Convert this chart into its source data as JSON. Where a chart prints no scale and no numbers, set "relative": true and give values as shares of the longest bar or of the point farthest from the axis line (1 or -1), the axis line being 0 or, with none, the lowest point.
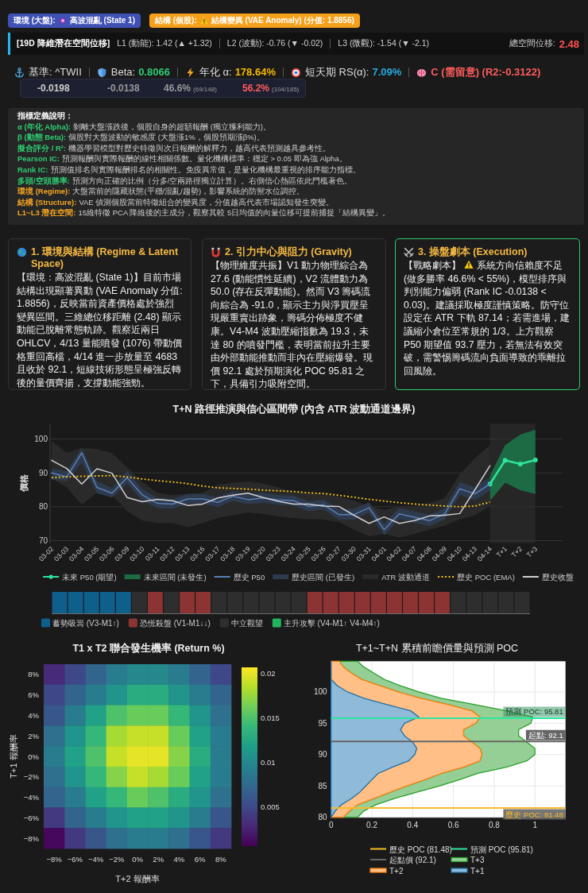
{
  "chart_data": [
    {
      "type": "other",
      "annotations": [
        "環境 (大盤):",
        "高波混亂 (State 1)",
        "結構 (個股):",
        "結構變異 (VAE Anomaly) (分值: 1.8856)",
        "[19D 降維潛在空間位移]",
        "L1 (動能): 1.42 (▲ +1.32)",
        "L2 (波動): -0.76 (▼ -0.02)",
        "L3 (微觀): -1.54 (▼ -2.1)",
        "總空間位移:",
        "2.48",
        "基準: ^TWII",
        "Beta:",
        "0.8066",
        "年化 α:",
        "178.64%",
        "短天期 RS(α):",
        "7.09%",
        "C (需留意) (R2:-0.3122)",
        "-0.0198",
        "-0.0138",
        "46.6%",
        "(69/148)",
        "56.2%",
        "(104/185)"
      ]
    },
    {
      "type": "other",
      "title": "指標定義說明：",
      "annotations": [
        "α (年化 Alpha):",
        "剝離大盤漲跌後，個股自身的超額報酬 (獨立獲利能力)。",
        "β (動態 Beta):",
        "個股對大盤波動的敏感度 (大盤漲1%，個股預期漲β%)。",
        "擬合評分 / R²:",
        "機器學習模型對歷史特徵與次日報酬的解釋力，越高代表預測越具參考性。",
        "Pearson IC:",
        "預測報酬與實際報酬的線性相關係數。量化機構標準：穩定 > 0.05 即為強 Alpha。",
        "Rank IC:",
        "預測值排名與實際報酬排名的相關性。免疫異常值，是量化機構最重視的排序能力指標。",
        "多頭/空頭勝率:",
        "預測方向正確的比例（分多/空兩路徑獨立計算）。右側信心熱區依此門檻著色。",
        "環境 (Regime):",
        "大盤當前的隱藏狀態(平穩/混亂/趨勢)，影響系統的防禦水位調控。",
        "結構 (Structure):",
        "VAE 偵測個股當前特徵組合的變異度，分值越高代表市場認知發生突變。",
        "L1~L3 潛在空間:",
        "15維特徵 PCA 降維後的主成分，觀察其較 5日均值的向量位移可提前捕捉「結構異變」。"
      ]
    },
    {
      "type": "other",
      "title": "1. 環境與結構 (Regime & Latent Space)",
      "annotations": [
        "【環境：高波混亂 (State 1)】目前市場結構出現顯著異動 (VAE Anomaly 分值: 1.8856)，反映當前資產價格處於強烈變異區間。三維總位移距離 (2.48) 顯示動能已脫離常態軌跡。觀察近兩日 OHLCV，4/13 量能噴發 (1076) 帶動價格重回高檔，4/14 進一步放量至 4683 且收於 92.1，短線技術形態呈極強反轉後的量價齊揚，支撐動能強勁。"
      ]
    },
    {
      "type": "other",
      "title": "2. 引力中心與阻力 (Gravity)",
      "annotations": [
        "【物理維度共振】V1 動力物理綜合為 27.6 (動能慣性延續)，V2 流體動力為 50.0 (存在反彈動能)。然而 V3 籌碼流向綜合為 -91.0，顯示主力與淨買壓呈現嚴重賣出跡象，籌碼分佈極度不健康。V4-M4 波動壓縮指數為 19.3，未達 80 的噴發門檻，表明當前拉升主要由外部動能推動而非內在壓縮爆發。現價 92.1 處於預期演化 POC 95.81 之下，具備引力吸附空間。"
      ]
    },
    {
      "type": "other",
      "title": "3. 操盤劇本 (Execution)",
      "annotations": [
        "【戰略劇本】",
        "系統方向信賴度不足 (做多勝率 46.6% < 55%)，模型排序與判別能力偏弱 (Rank IC -0.0138 < 0.03)。建議採取極度謹慎策略。防守位設定在 ATR 下軌 87.14；若需進場，建議縮小倉位至常規的 1/3。上方觀察 P50 期望值 93.7 壓力，若無法有效突破，需警惕籌碼流向負面導致的乖離拉回風險。"
      ]
    },
    {
      "type": "line",
      "title": "T+N 路徑推演與信心區間帶 (內含 ATR 波動通道邊界)",
      "ylabel": "價格",
      "categories": [
        "03-02",
        "03-03",
        "03-04",
        "03-05",
        "03-06",
        "03-09",
        "03-10",
        "03-11",
        "03-12",
        "03-13",
        "03-16",
        "03-17",
        "03-18",
        "03-19",
        "03-20",
        "03-23",
        "03-24",
        "03-25",
        "03-26",
        "03-27",
        "03-30",
        "03-31",
        "04-01",
        "04-02",
        "04-07",
        "04-08",
        "04-09",
        "04-10",
        "04-13",
        "04-14",
        "T+1",
        "T+2",
        "T+3"
      ],
      "series": [
        {
          "name": "未來 P50 (期望)",
          "type": "line",
          "color": "#2ee59d",
          "marker": "circle",
          "values": [
            null,
            null,
            null,
            null,
            null,
            null,
            null,
            null,
            null,
            null,
            null,
            null,
            null,
            null,
            null,
            null,
            null,
            null,
            null,
            null,
            null,
            null,
            null,
            null,
            null,
            null,
            null,
            null,
            null,
            86.7,
            93.7,
            92.6,
            93.8
          ]
        },
        {
          "name": "未來區間 (未發生)",
          "type": "area",
          "color": "#1d6b45",
          "values": [
            null,
            null,
            null,
            null,
            null,
            null,
            null,
            null,
            null,
            null,
            null,
            null,
            null,
            null,
            null,
            null,
            null,
            null,
            null,
            null,
            null,
            null,
            null,
            null,
            null,
            null,
            null,
            null,
            null,
            null,
            null,
            null,
            null
          ],
          "lower": [
            null,
            null,
            null,
            null,
            null,
            null,
            null,
            null,
            null,
            null,
            null,
            null,
            null,
            null,
            null,
            null,
            null,
            null,
            null,
            null,
            null,
            null,
            null,
            null,
            null,
            null,
            null,
            null,
            null,
            81.8,
            87.1,
            84.9,
            83.8
          ],
          "upper": [
            null,
            null,
            null,
            null,
            null,
            null,
            null,
            null,
            null,
            null,
            null,
            null,
            null,
            null,
            null,
            null,
            null,
            null,
            null,
            null,
            null,
            null,
            null,
            null,
            null,
            null,
            null,
            null,
            null,
            89.2,
            98.2,
            101.3,
            102.7
          ]
        },
        {
          "name": "歷史 P50",
          "type": "line",
          "color": "#5a7fb3",
          "values": [
            90.0,
            88.8,
            95.9,
            85.7,
            84.0,
            88.6,
            83.5,
            81.0,
            80.8,
            82.3,
            82.3,
            81.3,
            83.1,
            82.1,
            82.6,
            82.0,
            81.8,
            80.1,
            80.6,
            77.7,
            77.7,
            79.7,
            73.2,
            77.9,
            76.9,
            75.9,
            77.9,
            85.3,
            83.8,
            86.7,
            null,
            null,
            null
          ]
        },
        {
          "name": "歷史區間 (已發生)",
          "type": "area",
          "color": "#2e3a4e",
          "values": [
            null,
            null,
            null,
            null,
            null,
            null,
            null,
            null,
            null,
            null,
            null,
            null,
            null,
            null,
            null,
            null,
            null,
            null,
            null,
            null,
            null,
            null,
            null,
            null,
            null,
            null,
            null,
            null,
            null,
            null,
            null,
            null,
            null
          ],
          "lower": [
            88.0,
            87.5,
            93.0,
            84.0,
            82.7,
            86.8,
            81.8,
            79.6,
            79.4,
            80.9,
            80.9,
            79.9,
            81.7,
            80.7,
            81.2,
            80.6,
            80.4,
            78.7,
            79.2,
            76.2,
            76.2,
            78.2,
            71.6,
            76.3,
            75.3,
            74.3,
            76.3,
            83.5,
            81.9,
            84.8,
            null,
            null,
            null
          ],
          "upper": [
            91.2,
            90.5,
            97.3,
            87.5,
            85.5,
            90.6,
            85.2,
            82.6,
            82.3,
            83.8,
            83.8,
            82.8,
            84.6,
            83.6,
            84.1,
            83.5,
            83.3,
            81.6,
            82.1,
            79.3,
            79.3,
            81.3,
            75.0,
            79.6,
            78.6,
            77.6,
            79.6,
            87.3,
            85.8,
            88.7,
            null,
            null,
            null
          ]
        },
        {
          "name": "ATR 波動通道",
          "type": "area",
          "color": "#2a2a2a",
          "values": [
            null,
            null,
            null,
            null,
            null,
            null,
            null,
            null,
            null,
            null,
            null,
            null,
            null,
            null,
            null,
            null,
            null,
            null,
            null,
            null,
            null,
            null,
            null,
            null,
            null,
            null,
            null,
            null,
            null,
            null,
            null,
            null,
            null
          ],
          "lower": [
            88.4,
            85.7,
            80.6,
            84.1,
            83.4,
            78.7,
            75.9,
            75.2,
            75.2,
            74.0,
            75.2,
            76.7,
            77.5,
            78.3,
            77.9,
            77.1,
            76.7,
            76.3,
            76.3,
            75.5,
            73.2,
            71.3,
            72.0,
            70.9,
            72.0,
            73.2,
            74.4,
            76.3,
            77.5,
            80.2,
            null,
            null,
            null
          ],
          "upper": [
            99.4,
            95.9,
            97.4,
            97.0,
            95.9,
            91.6,
            87.3,
            84.1,
            83.4,
            83.8,
            84.1,
            86.5,
            87.1,
            87.4,
            86.9,
            85.7,
            84.5,
            84.1,
            83.8,
            83.0,
            81.8,
            80.2,
            79.1,
            80.2,
            80.2,
            81.0,
            82.6,
            89.6,
            94.3,
            98.2,
            null,
            null,
            null
          ]
        },
        {
          "name": "歷史 POC (EMA)",
          "type": "line",
          "color": "#f5c518",
          "line_style": "dotted",
          "values": [
            88.6,
            88.8,
            89.0,
            89.1,
            89.2,
            88.8,
            88.2,
            87.7,
            87.3,
            86.8,
            86.1,
            85.6,
            85.4,
            85.2,
            84.9,
            84.7,
            84.5,
            84.1,
            83.9,
            83.4,
            82.8,
            82.2,
            81.7,
            81.2,
            80.8,
            80.5,
            80.2,
            80.0,
            80.2,
            81.4,
            null,
            null,
            null
          ]
        },
        {
          "name": "歷史收盤",
          "type": "line",
          "color": "#d0d0d0",
          "values": [
            93.7,
            91.3,
            86.7,
            91.2,
            89.9,
            82.7,
            81.5,
            82.2,
            81.8,
            80.4,
            80.8,
            82.6,
            83.4,
            84.0,
            82.7,
            81.6,
            80.8,
            80.8,
            80.2,
            80.1,
            77.5,
            75.1,
            77.0,
            75.1,
            75.9,
            77.3,
            77.5,
            78.0,
            85.0,
            92.1,
            null,
            null,
            null
          ]
        }
      ],
      "bands": [
        {
          "axis": "x",
          "from": "04-14",
          "to": "T+3",
          "color": "#262626"
        }
      ],
      "ylim": [
        69.3,
        104.5
      ],
      "yticks": [
        70,
        80,
        90,
        100
      ],
      "grid": "y",
      "legend": "bottom"
    },
    {
      "type": "bar",
      "stacked": true,
      "relative": true,
      "legend": "bottom",
      "categories": [
        null,
        null,
        null,
        null,
        null,
        null,
        null,
        null,
        null,
        null,
        null,
        null,
        null,
        null,
        null,
        null,
        null,
        null,
        null,
        null,
        null,
        null,
        null,
        null,
        null,
        null,
        null,
        null,
        null,
        null
      ],
      "series": [
        {
          "name": "蓄勢吸籌 (V3-M1↑)",
          "color": "#0e5f8c",
          "values": [
            1,
            1,
            1,
            1,
            1,
            null,
            null,
            null,
            null,
            null,
            null,
            null,
            null,
            null,
            null,
            null,
            null,
            null,
            null,
            null,
            null,
            null,
            null,
            null,
            null,
            null,
            null,
            null,
            null,
            null
          ]
        },
        {
          "name": "恐慌殺盤 (V1-M1↓↓)",
          "color": "#8c3434",
          "values": [
            null,
            null,
            null,
            null,
            null,
            null,
            1,
            null,
            1,
            1,
            null,
            null,
            null,
            null,
            null,
            null,
            1,
            1,
            1,
            1,
            1,
            1,
            1,
            1,
            1,
            null,
            null,
            null,
            null,
            null
          ]
        },
        {
          "name": "中立觀望",
          "color": "#2e2e2e",
          "values": [
            null,
            null,
            null,
            null,
            null,
            1,
            null,
            1,
            null,
            null,
            1,
            1,
            1,
            1,
            1,
            1,
            null,
            null,
            null,
            null,
            null,
            null,
            null,
            null,
            null,
            1,
            1,
            1,
            1,
            1
          ]
        },
        {
          "name": "主升攻擊 (V4-M1↑ V4-M4↑)",
          "color": "#22b35e",
          "values": [
            null,
            null,
            null,
            null,
            null,
            null,
            null,
            null,
            null,
            null,
            null,
            null,
            null,
            null,
            null,
            null,
            null,
            null,
            null,
            null,
            null,
            null,
            null,
            null,
            null,
            null,
            null,
            null,
            null,
            null
          ]
        }
      ]
    },
    {
      "type": "heatmap",
      "title": "T1 x T2 聯合發生機率 (Return %)",
      "xlabel": "T+2 報酬率",
      "ylabel": "T+1 報酬率",
      "categories": [
        "−8%",
        "−6%",
        "−4%",
        "−2%",
        "0%",
        "2%",
        "4%",
        "6%",
        "8%"
      ],
      "y_categories": [
        "8%",
        "6%",
        "4%",
        "2%",
        "0%",
        "−2%",
        "−4%",
        "−6%",
        "−8%"
      ],
      "cells": [
        [
          0.003,
          0.005,
          0.007,
          0.009,
          0.01,
          0.01,
          0.009,
          0.007,
          0.005
        ],
        [
          0.005,
          0.007,
          0.009,
          0.011,
          0.013,
          0.013,
          0.011,
          0.009,
          0.007
        ],
        [
          0.006,
          0.009,
          0.012,
          0.015,
          0.016,
          0.016,
          0.014,
          0.011,
          0.008
        ],
        [
          0.008,
          0.011,
          0.014,
          0.018,
          0.019,
          0.019,
          0.016,
          0.012,
          0.009
        ],
        [
          0.009,
          0.012,
          0.015,
          0.019,
          0.02,
          0.02,
          0.017,
          0.013,
          0.009
        ],
        [
          0.008,
          0.011,
          0.014,
          0.017,
          0.019,
          0.018,
          0.016,
          0.012,
          0.009
        ],
        [
          0.007,
          0.009,
          0.012,
          0.014,
          0.016,
          0.015,
          0.013,
          0.011,
          0.008
        ],
        [
          0.004,
          0.007,
          0.009,
          0.011,
          0.012,
          0.012,
          0.011,
          0.009,
          0.006
        ],
        [
          0.001,
          0.004,
          0.006,
          0.008,
          0.009,
          0.009,
          0.008,
          0.006,
          0.004
        ]
      ],
      "clim": [
        0.0006,
        0.0207
      ],
      "cticks": [
        0.005,
        0.01,
        0.015,
        0.02
      ]
    },
    {
      "type": "area",
      "title": "T+1~T+N 累積前瞻價量與預測 POC",
      "orientation": "horizontal",
      "stacked": true,
      "x": [
        80,
        81,
        82,
        83,
        84,
        85,
        86,
        87,
        88,
        89,
        90,
        91,
        92,
        93,
        94,
        95,
        96,
        97,
        98,
        99,
        100,
        101,
        102,
        103,
        104,
        104.9
      ],
      "series": [
        {
          "name": "T+1",
          "type": "area",
          "color": "#8fbbd9",
          "values": [
            0,
            0.02,
            0.05,
            0.1,
            0.14,
            0.17,
            0.2,
            0.23,
            0.3,
            0.38,
            0.41,
            0.42,
            0.4,
            0.36,
            0.34,
            0.36,
            0.43,
            0.39,
            0.27,
            0.16,
            0.08,
            0.03,
            0,
            0,
            0,
            0
          ]
        },
        {
          "name": "T+2",
          "type": "area",
          "color": "#ffbf86",
          "values": [
            0.06,
            0.07,
            0.08,
            0.11,
            0.15,
            0.2,
            0.26,
            0.31,
            0.35,
            0.35,
            0.33,
            0.31,
            0.29,
            0.29,
            0.31,
            0.35,
            0.3,
            0.3,
            0.3,
            0.28,
            0.25,
            0.21,
            0.15,
            0.1,
            0.06,
            0.04
          ]
        },
        {
          "name": "T+3",
          "type": "area",
          "color": "#95cf95",
          "values": [
            0.07,
            0.07,
            0.09,
            0.1,
            0.13,
            0.16,
            0.17,
            0.18,
            0.21,
            0.23,
            0.26,
            0.27,
            0.27,
            0.27,
            0.27,
            0.27,
            0.26,
            0.17,
            0.13,
            0.1,
            0.1,
            0.1,
            0.11,
            0.11,
            0.1,
            0.09
          ]
        },
        {
          "name": "起點價 (92.1)",
          "type": "line",
          "color": "#666666",
          "x": [
            92.1,
            92.1
          ],
          "values": [
            0,
            1.15
          ]
        },
        {
          "name": "預測 POC (95.81)",
          "type": "line",
          "color": "#2ee6a0",
          "x": [
            95.81,
            95.81
          ],
          "values": [
            0,
            1.15
          ]
        },
        {
          "name": "歷史 POC (81.48)",
          "type": "line",
          "color": "#f7bb2a",
          "x": [
            81.48,
            81.48
          ],
          "values": [
            0,
            1.15
          ]
        }
      ],
      "annotations": [
        "起點: 92.1",
        "預測 POC: 95.81",
        "歷史 POC: 81.48"
      ],
      "xlim": [
        0,
        1.15
      ],
      "xticks": [
        0,
        0.2,
        0.4,
        0.6,
        0.8,
        1
      ],
      "ylim": [
        80,
        104.9
      ],
      "yticks": [
        80,
        85,
        90,
        95,
        100
      ],
      "grid": true,
      "legend": "bottom"
    }
  ]
}
